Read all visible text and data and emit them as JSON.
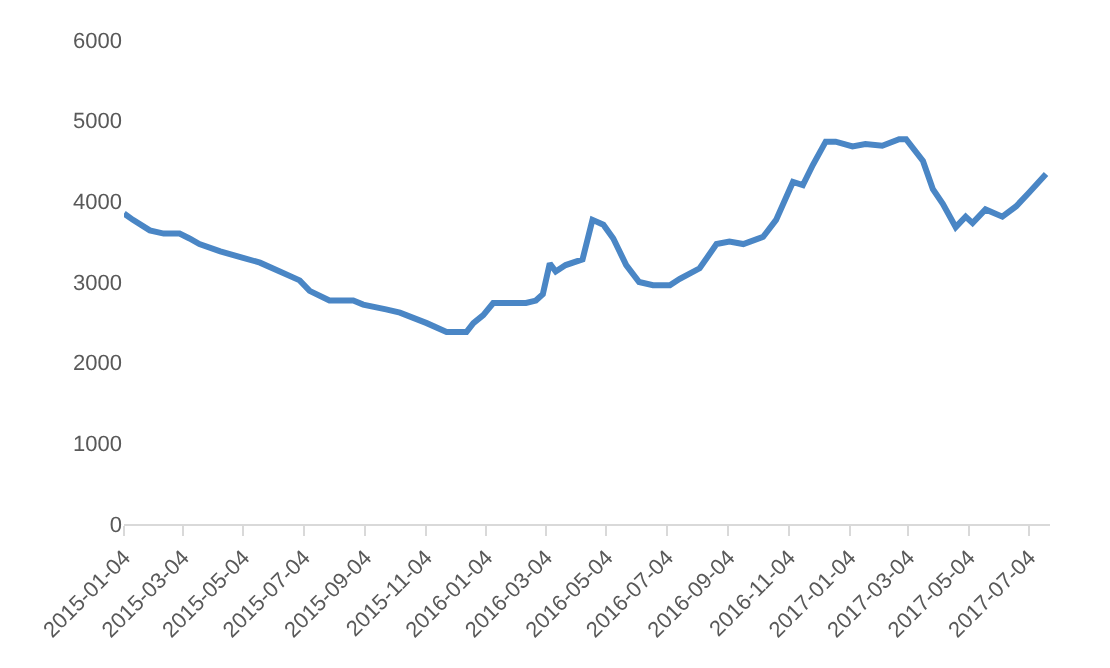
{
  "chart_data": {
    "type": "line",
    "x": [
      "2015-01-04",
      "2015-01-13",
      "2015-01-30",
      "2015-02-13",
      "2015-03-01",
      "2015-03-11",
      "2015-03-21",
      "2015-04-11",
      "2015-05-04",
      "2015-05-21",
      "2015-06-10",
      "2015-06-30",
      "2015-07-10",
      "2015-07-30",
      "2015-08-23",
      "2015-09-02",
      "2015-09-25",
      "2015-10-09",
      "2015-11-05",
      "2015-11-25",
      "2015-12-15",
      "2015-12-22",
      "2016-01-01",
      "2016-01-11",
      "2016-02-13",
      "2016-02-23",
      "2016-03-01",
      "2016-03-08",
      "2016-03-14",
      "2016-03-24",
      "2016-04-10",
      "2016-04-20",
      "2016-05-01",
      "2016-05-11",
      "2016-05-24",
      "2016-06-06",
      "2016-06-20",
      "2016-07-07",
      "2016-07-17",
      "2016-08-06",
      "2016-08-23",
      "2016-09-05",
      "2016-09-19",
      "2016-10-09",
      "2016-10-22",
      "2016-11-08",
      "2016-11-18",
      "2016-11-28",
      "2016-12-11",
      "2016-12-21",
      "2017-01-07",
      "2017-01-20",
      "2017-02-06",
      "2017-02-23",
      "2017-03-02",
      "2017-03-19",
      "2017-03-29",
      "2017-04-08",
      "2017-04-21",
      "2017-05-01",
      "2017-05-08",
      "2017-05-21",
      "2017-06-07",
      "2017-06-21",
      "2017-07-04",
      "2017-07-21"
    ],
    "series": [
      {
        "color": "#4a86c5",
        "values": [
          3850,
          3770,
          3640,
          3600,
          3600,
          3540,
          3470,
          3380,
          3300,
          3240,
          3130,
          3020,
          2890,
          2770,
          2770,
          2720,
          2660,
          2620,
          2490,
          2380,
          2380,
          2490,
          2590,
          2740,
          2740,
          2770,
          2850,
          3230,
          3130,
          3210,
          3280,
          3770,
          3710,
          3540,
          3210,
          3000,
          2960,
          2960,
          3040,
          3170,
          3470,
          3500,
          3470,
          3560,
          3770,
          4240,
          4200,
          4450,
          4740,
          4740,
          4680,
          4710,
          4690,
          4770,
          4770,
          4500,
          4150,
          3970,
          3680,
          3810,
          3730,
          3900,
          3810,
          3940,
          4110,
          4340
        ]
      }
    ],
    "xlim": [
      "2015-01-04",
      "2017-07-25"
    ],
    "xticks": [
      "2015-01-04",
      "2015-03-04",
      "2015-05-04",
      "2015-07-04",
      "2015-09-04",
      "2015-11-04",
      "2016-01-04",
      "2016-03-04",
      "2016-05-04",
      "2016-07-04",
      "2016-09-04",
      "2016-11-04",
      "2017-01-04",
      "2017-03-04",
      "2017-05-04",
      "2017-07-04"
    ],
    "ylim": [
      0,
      6000
    ],
    "yticks": [
      0,
      1000,
      2000,
      3000,
      4000,
      5000,
      6000
    ],
    "grid": false,
    "marker": "none",
    "line_style": "solid"
  }
}
